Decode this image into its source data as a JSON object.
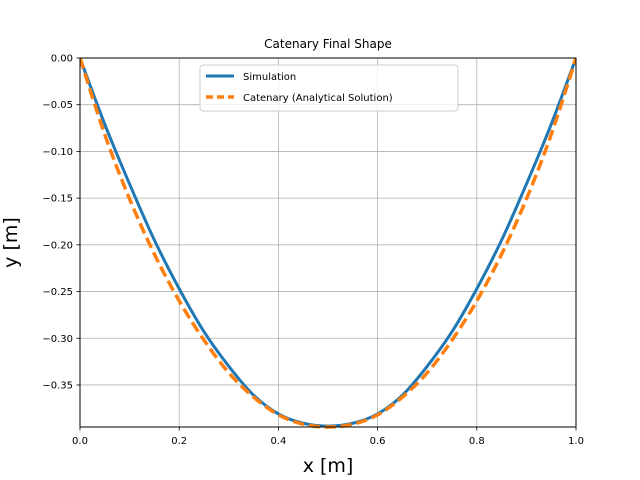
{
  "chart_data": {
    "type": "line",
    "title": "Catenary Final Shape",
    "xlabel": "x [m]",
    "ylabel": "y [m]",
    "xlim": [
      0.0,
      1.0
    ],
    "ylim": [
      -0.395,
      0.0
    ],
    "xticks": [
      0.0,
      0.2,
      0.4,
      0.6,
      0.8,
      1.0
    ],
    "xtick_labels": [
      "0.0",
      "0.2",
      "0.4",
      "0.6",
      "0.8",
      "1.0"
    ],
    "yticks": [
      0.0,
      -0.05,
      -0.1,
      -0.15,
      -0.2,
      -0.25,
      -0.3,
      -0.35
    ],
    "ytick_labels": [
      "0.00",
      "−0.05",
      "−0.10",
      "−0.15",
      "−0.20",
      "−0.25",
      "−0.30",
      "−0.35"
    ],
    "grid": true,
    "legend_position": "upper center",
    "series": [
      {
        "name": "Simulation",
        "style": "solid",
        "color": "#1f77b4",
        "x": [
          0.0,
          0.05,
          0.1,
          0.15,
          0.2,
          0.25,
          0.3,
          0.35,
          0.4,
          0.45,
          0.5,
          0.55,
          0.6,
          0.65,
          0.7,
          0.75,
          0.8,
          0.85,
          0.9,
          0.95,
          1.0
        ],
        "y": [
          0.0,
          -0.071,
          -0.135,
          -0.195,
          -0.247,
          -0.293,
          -0.33,
          -0.361,
          -0.381,
          -0.391,
          -0.394,
          -0.391,
          -0.381,
          -0.361,
          -0.33,
          -0.293,
          -0.247,
          -0.195,
          -0.135,
          -0.071,
          0.0
        ]
      },
      {
        "name": "Catenary (Analytical Solution)",
        "style": "dashed",
        "color": "#ff7f0e",
        "x": [
          0.0,
          0.05,
          0.1,
          0.15,
          0.2,
          0.25,
          0.3,
          0.35,
          0.4,
          0.45,
          0.5,
          0.55,
          0.6,
          0.65,
          0.7,
          0.75,
          0.8,
          0.85,
          0.9,
          0.95,
          1.0
        ],
        "y": [
          0.0,
          -0.082,
          -0.151,
          -0.21,
          -0.26,
          -0.302,
          -0.337,
          -0.363,
          -0.382,
          -0.392,
          -0.395,
          -0.392,
          -0.382,
          -0.363,
          -0.337,
          -0.302,
          -0.26,
          -0.21,
          -0.151,
          -0.082,
          0.0
        ]
      }
    ]
  }
}
